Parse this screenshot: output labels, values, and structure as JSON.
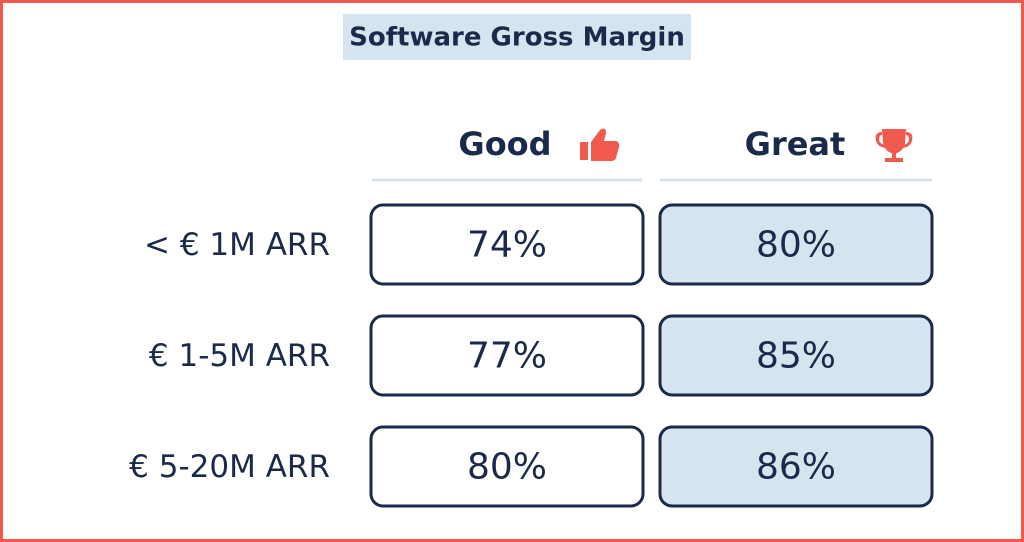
{
  "title": "Software Gross Margin",
  "table": {
    "columns": [
      "Good",
      "Great"
    ],
    "rows": [
      {
        "label": "< € 1M ARR",
        "cells": [
          "74%",
          "80%"
        ]
      },
      {
        "label": "€ 1-5M ARR",
        "cells": [
          "77%",
          "85%"
        ]
      },
      {
        "label": "€ 5-20M ARR",
        "cells": [
          "80%",
          "86%"
        ]
      }
    ]
  }
}
